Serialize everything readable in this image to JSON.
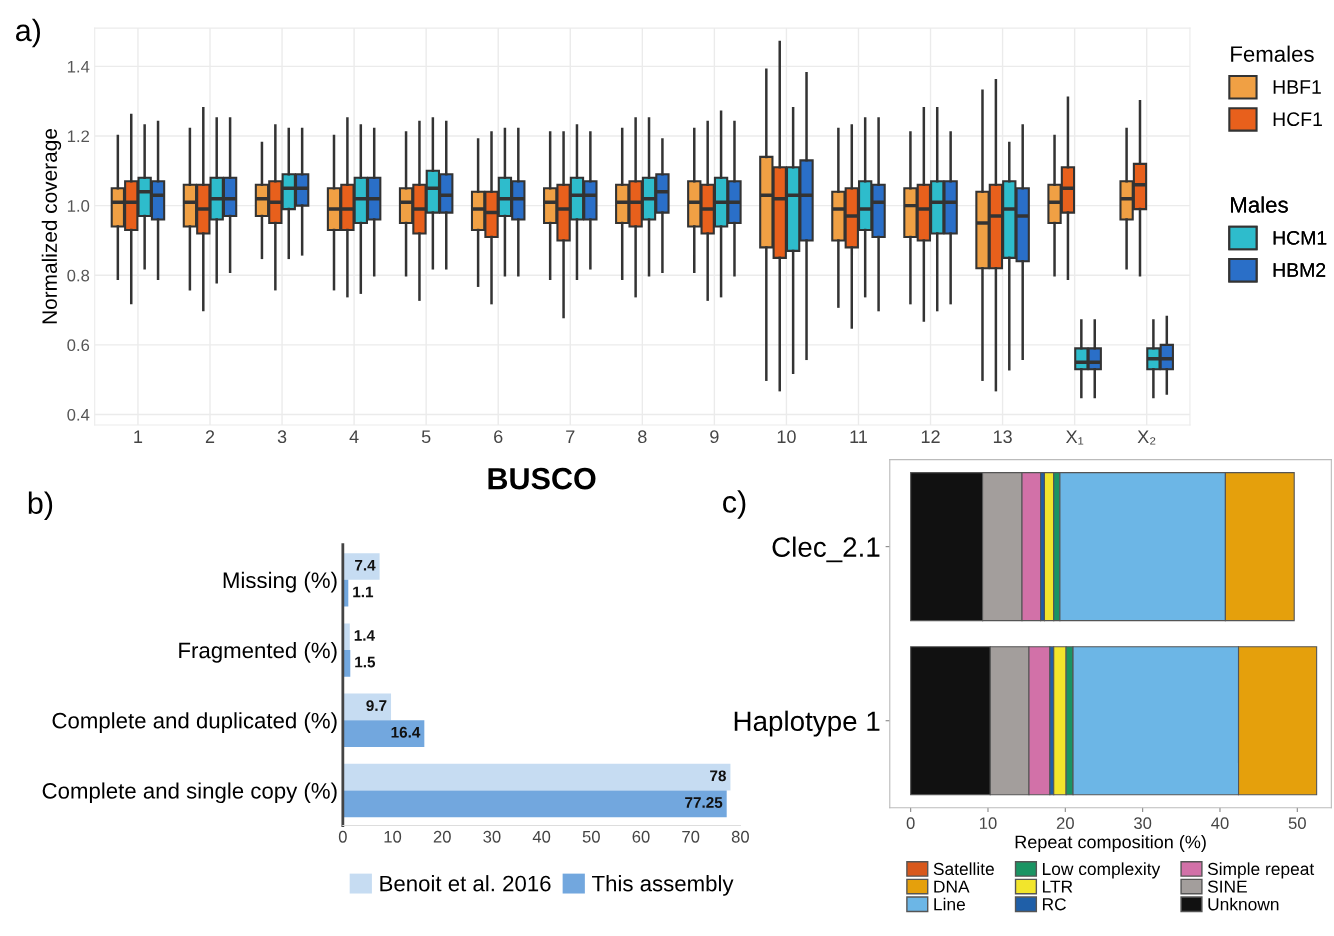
{
  "chart_data": [
    {
      "type": "box",
      "ylabel": "Normalized coverage",
      "annotations": [
        "a)"
      ],
      "categories": [
        "1",
        "2",
        "3",
        "4",
        "5",
        "6",
        "7",
        "8",
        "9",
        "10",
        "11",
        "12",
        "13",
        "X₁",
        "X₂"
      ],
      "ylim": [
        0.37,
        1.51
      ],
      "yticks": [
        0.4,
        0.6,
        0.8,
        {
          "value": 1.0,
          "label": "1.0"
        },
        1.2,
        1.4
      ],
      "grid": true,
      "legend": "right",
      "legend_title": [
        "Females",
        "Males"
      ],
      "series": [
        {
          "name": "HBF1",
          "color": "#f0a044",
          "boxes": [
            {
              "low": 0.79,
              "q1": 0.94,
              "median": 1.01,
              "q3": 1.05,
              "high": 1.2
            },
            {
              "low": 0.76,
              "q1": 0.94,
              "median": 1.01,
              "q3": 1.06,
              "high": 1.22
            },
            {
              "low": 0.85,
              "q1": 0.97,
              "median": 1.02,
              "q3": 1.06,
              "high": 1.18
            },
            {
              "low": 0.76,
              "q1": 0.93,
              "median": 0.99,
              "q3": 1.05,
              "high": 1.2
            },
            {
              "low": 0.8,
              "q1": 0.95,
              "median": 1.01,
              "q3": 1.05,
              "high": 1.21
            },
            {
              "low": 0.77,
              "q1": 0.93,
              "median": 0.99,
              "q3": 1.04,
              "high": 1.19
            },
            {
              "low": 0.79,
              "q1": 0.95,
              "median": 1.01,
              "q3": 1.05,
              "high": 1.21
            },
            {
              "low": 0.79,
              "q1": 0.95,
              "median": 1.01,
              "q3": 1.06,
              "high": 1.22
            },
            {
              "low": 0.81,
              "q1": 0.94,
              "median": 1.01,
              "q3": 1.07,
              "high": 1.22
            },
            {
              "low": 0.5,
              "q1": 0.88,
              "median": 1.03,
              "q3": 1.14,
              "high": 1.39
            },
            {
              "low": 0.71,
              "q1": 0.9,
              "median": 0.99,
              "q3": 1.04,
              "high": 1.22
            },
            {
              "low": 0.72,
              "q1": 0.91,
              "median": 1.0,
              "q3": 1.05,
              "high": 1.21
            },
            {
              "low": 0.5,
              "q1": 0.82,
              "median": 0.95,
              "q3": 1.04,
              "high": 1.33
            },
            {
              "low": 0.8,
              "q1": 0.95,
              "median": 1.01,
              "q3": 1.06,
              "high": 1.2
            },
            {
              "low": 0.82,
              "q1": 0.96,
              "median": 1.02,
              "q3": 1.07,
              "high": 1.22
            }
          ]
        },
        {
          "name": "HCF1",
          "color": "#e8601c",
          "boxes": [
            {
              "low": 0.72,
              "q1": 0.93,
              "median": 1.01,
              "q3": 1.07,
              "high": 1.26
            },
            {
              "low": 0.7,
              "q1": 0.92,
              "median": 0.99,
              "q3": 1.06,
              "high": 1.28
            },
            {
              "low": 0.76,
              "q1": 0.95,
              "median": 1.01,
              "q3": 1.07,
              "high": 1.23
            },
            {
              "low": 0.74,
              "q1": 0.93,
              "median": 0.99,
              "q3": 1.06,
              "high": 1.25
            },
            {
              "low": 0.73,
              "q1": 0.92,
              "median": 0.99,
              "q3": 1.06,
              "high": 1.24
            },
            {
              "low": 0.72,
              "q1": 0.91,
              "median": 0.98,
              "q3": 1.04,
              "high": 1.21
            },
            {
              "low": 0.68,
              "q1": 0.9,
              "median": 0.99,
              "q3": 1.06,
              "high": 1.21
            },
            {
              "low": 0.74,
              "q1": 0.94,
              "median": 1.01,
              "q3": 1.07,
              "high": 1.25
            },
            {
              "low": 0.73,
              "q1": 0.92,
              "median": 0.99,
              "q3": 1.06,
              "high": 1.24
            },
            {
              "low": 0.47,
              "q1": 0.85,
              "median": 1.02,
              "q3": 1.11,
              "high": 1.47
            },
            {
              "low": 0.65,
              "q1": 0.88,
              "median": 0.97,
              "q3": 1.05,
              "high": 1.23
            },
            {
              "low": 0.67,
              "q1": 0.9,
              "median": 0.99,
              "q3": 1.06,
              "high": 1.28
            },
            {
              "low": 0.47,
              "q1": 0.82,
              "median": 0.97,
              "q3": 1.06,
              "high": 1.36
            },
            {
              "low": 0.79,
              "q1": 0.98,
              "median": 1.05,
              "q3": 1.11,
              "high": 1.31
            },
            {
              "low": 0.8,
              "q1": 0.99,
              "median": 1.06,
              "q3": 1.12,
              "high": 1.3
            }
          ]
        },
        {
          "name": "HCM1",
          "color": "#2ebccc",
          "boxes": [
            {
              "low": 0.82,
              "q1": 0.97,
              "median": 1.04,
              "q3": 1.08,
              "high": 1.23
            },
            {
              "low": 0.78,
              "q1": 0.96,
              "median": 1.02,
              "q3": 1.08,
              "high": 1.25
            },
            {
              "low": 0.85,
              "q1": 0.99,
              "median": 1.05,
              "q3": 1.09,
              "high": 1.22
            },
            {
              "low": 0.75,
              "q1": 0.95,
              "median": 1.02,
              "q3": 1.08,
              "high": 1.23
            },
            {
              "low": 0.82,
              "q1": 0.98,
              "median": 1.05,
              "q3": 1.1,
              "high": 1.25
            },
            {
              "low": 0.8,
              "q1": 0.97,
              "median": 1.02,
              "q3": 1.08,
              "high": 1.22
            },
            {
              "low": 0.79,
              "q1": 0.96,
              "median": 1.03,
              "q3": 1.08,
              "high": 1.23
            },
            {
              "low": 0.8,
              "q1": 0.96,
              "median": 1.02,
              "q3": 1.08,
              "high": 1.25
            },
            {
              "low": 0.74,
              "q1": 0.94,
              "median": 1.01,
              "q3": 1.08,
              "high": 1.27
            },
            {
              "low": 0.52,
              "q1": 0.87,
              "median": 1.03,
              "q3": 1.11,
              "high": 1.28
            },
            {
              "low": 0.74,
              "q1": 0.93,
              "median": 0.99,
              "q3": 1.07,
              "high": 1.25
            },
            {
              "low": 0.7,
              "q1": 0.92,
              "median": 1.01,
              "q3": 1.07,
              "high": 1.28
            },
            {
              "low": 0.53,
              "q1": 0.85,
              "median": 0.99,
              "q3": 1.07,
              "high": 1.18
            },
            {
              "low": 0.45,
              "q1": 0.53,
              "median": 0.55,
              "q3": 0.59,
              "high": 0.67
            },
            {
              "low": 0.45,
              "q1": 0.53,
              "median": 0.56,
              "q3": 0.59,
              "high": 0.67
            }
          ]
        },
        {
          "name": "HBM2",
          "color": "#2a6fc8",
          "boxes": [
            {
              "low": 0.79,
              "q1": 0.96,
              "median": 1.03,
              "q3": 1.07,
              "high": 1.24
            },
            {
              "low": 0.81,
              "q1": 0.97,
              "median": 1.02,
              "q3": 1.08,
              "high": 1.25
            },
            {
              "low": 0.86,
              "q1": 1.0,
              "median": 1.05,
              "q3": 1.09,
              "high": 1.22
            },
            {
              "low": 0.8,
              "q1": 0.96,
              "median": 1.02,
              "q3": 1.08,
              "high": 1.22
            },
            {
              "low": 0.82,
              "q1": 0.98,
              "median": 1.03,
              "q3": 1.09,
              "high": 1.24
            },
            {
              "low": 0.8,
              "q1": 0.96,
              "median": 1.02,
              "q3": 1.07,
              "high": 1.22
            },
            {
              "low": 0.82,
              "q1": 0.96,
              "median": 1.03,
              "q3": 1.07,
              "high": 1.21
            },
            {
              "low": 0.81,
              "q1": 0.98,
              "median": 1.04,
              "q3": 1.09,
              "high": 1.19
            },
            {
              "low": 0.8,
              "q1": 0.95,
              "median": 1.01,
              "q3": 1.07,
              "high": 1.24
            },
            {
              "low": 0.56,
              "q1": 0.9,
              "median": 1.03,
              "q3": 1.13,
              "high": 1.38
            },
            {
              "low": 0.7,
              "q1": 0.91,
              "median": 1.01,
              "q3": 1.06,
              "high": 1.25
            },
            {
              "low": 0.72,
              "q1": 0.92,
              "median": 1.01,
              "q3": 1.07,
              "high": 1.21
            },
            {
              "low": 0.56,
              "q1": 0.84,
              "median": 0.97,
              "q3": 1.05,
              "high": 1.23
            },
            {
              "low": 0.45,
              "q1": 0.53,
              "median": 0.55,
              "q3": 0.59,
              "high": 0.67
            },
            {
              "low": 0.46,
              "q1": 0.53,
              "median": 0.56,
              "q3": 0.6,
              "high": 0.68
            }
          ]
        }
      ]
    },
    {
      "type": "bar",
      "orientation": "horizontal",
      "title": "BUSCO",
      "annotations": [
        "b)"
      ],
      "categories": [
        "Missing (%)",
        "Fragmented (%)",
        "Complete and duplicated (%)",
        "Complete and single copy (%)"
      ],
      "xlim": [
        0,
        80
      ],
      "xticks": [
        0,
        10,
        20,
        30,
        40,
        50,
        60,
        70,
        80
      ],
      "data_labels": true,
      "legend": "bottom",
      "series": [
        {
          "name": "Benoit et al. 2016",
          "color": "#c6dcf2",
          "values": [
            7.4,
            1.4,
            9.7,
            78
          ]
        },
        {
          "name": "This assembly",
          "color": "#72a7de",
          "values": [
            1.1,
            1.5,
            16.4,
            77.25
          ]
        }
      ]
    },
    {
      "type": "bar",
      "orientation": "horizontal",
      "stacked": true,
      "xlabel": "Repeat composition (%)",
      "annotations": [
        "c)"
      ],
      "categories": [
        "Clec_2.1",
        "Haplotype 1"
      ],
      "xlim": [
        -2.7,
        54.4
      ],
      "xticks": [
        0,
        10,
        20,
        30,
        40,
        50
      ],
      "legend": "bottom",
      "series": [
        {
          "name": "Unknown",
          "color": "#111111",
          "values": [
            9.3,
            10.3
          ]
        },
        {
          "name": "SINE",
          "color": "#a39e9c",
          "values": [
            5.1,
            5.0
          ]
        },
        {
          "name": "Simple repeat",
          "color": "#d271a8",
          "values": [
            2.4,
            2.7
          ]
        },
        {
          "name": "RC",
          "color": "#1f5fa8",
          "values": [
            0.5,
            0.5
          ]
        },
        {
          "name": "LTR",
          "color": "#f2e52c",
          "values": [
            1.2,
            1.6
          ]
        },
        {
          "name": "Low complexity",
          "color": "#1a9463",
          "values": [
            0.8,
            0.9
          ]
        },
        {
          "name": "Line",
          "color": "#6cb6e6",
          "values": [
            21.4,
            21.4
          ]
        },
        {
          "name": "DNA",
          "color": "#e5a00c",
          "values": [
            8.9,
            10.1
          ]
        },
        {
          "name": "Satellite",
          "color": "#d8581c",
          "values": [
            0,
            0
          ]
        }
      ]
    }
  ]
}
